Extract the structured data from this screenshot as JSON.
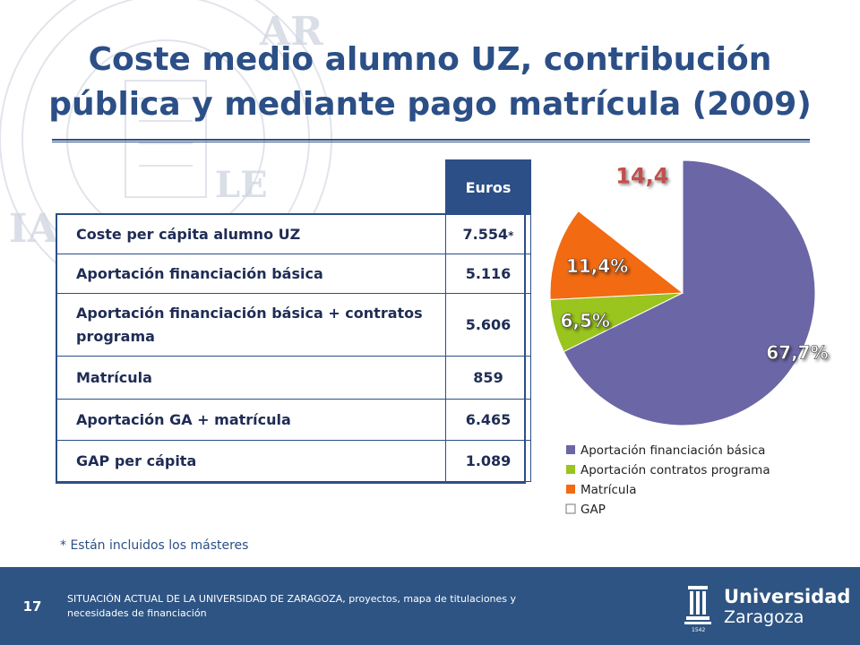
{
  "title": "Coste medio alumno UZ, contribución pública y mediante pago matrícula (2009)",
  "table": {
    "header": "Euros",
    "rows": [
      {
        "label": "Coste per cápita alumno UZ",
        "value": "7.554",
        "mark": "*"
      },
      {
        "label": "Aportación financiación básica",
        "value": "5.116",
        "mark": ""
      },
      {
        "label": "Aportación financiación básica + contratos programa",
        "value": "5.606",
        "mark": ""
      },
      {
        "label": "Matrícula",
        "value": "859",
        "mark": ""
      },
      {
        "label": "Aportación GA + matrícula",
        "value": "6.465",
        "mark": ""
      },
      {
        "label": "GAP per cápita",
        "value": "1.089",
        "mark": ""
      }
    ]
  },
  "footnote": "* Están incluidos los másteres",
  "footer": {
    "page_number": "17",
    "text": "SITUACIÓN ACTUAL DE LA UNIVERSIDAD DE ZARAGOZA, proyectos, mapa de titulaciones y necesidades de financiación",
    "logo_name": "Universidad",
    "logo_city": "Zaragoza",
    "logo_year": "1542"
  },
  "colors": {
    "title": "#2b4f86",
    "footer_bg": "#2e5483",
    "basic": "#6b66a5",
    "contracts": "#9ac41e",
    "tuition": "#f26a12",
    "gap": "#ffffff",
    "gap_label": "#c0504d"
  },
  "chart_data": {
    "type": "pie",
    "title": "",
    "slices": [
      {
        "name": "Aportación financiación básica",
        "value": 67.7,
        "label": "67,7%",
        "color": "#6b66a5"
      },
      {
        "name": "Aportación contratos programa",
        "value": 6.5,
        "label": "6,5%",
        "color": "#9ac41e"
      },
      {
        "name": "Matrícula",
        "value": 11.4,
        "label": "11,4%",
        "color": "#f26a12"
      },
      {
        "name": "GAP",
        "value": 14.4,
        "label": "14,4",
        "color": "#ffffff"
      }
    ],
    "legend_position": "bottom"
  }
}
